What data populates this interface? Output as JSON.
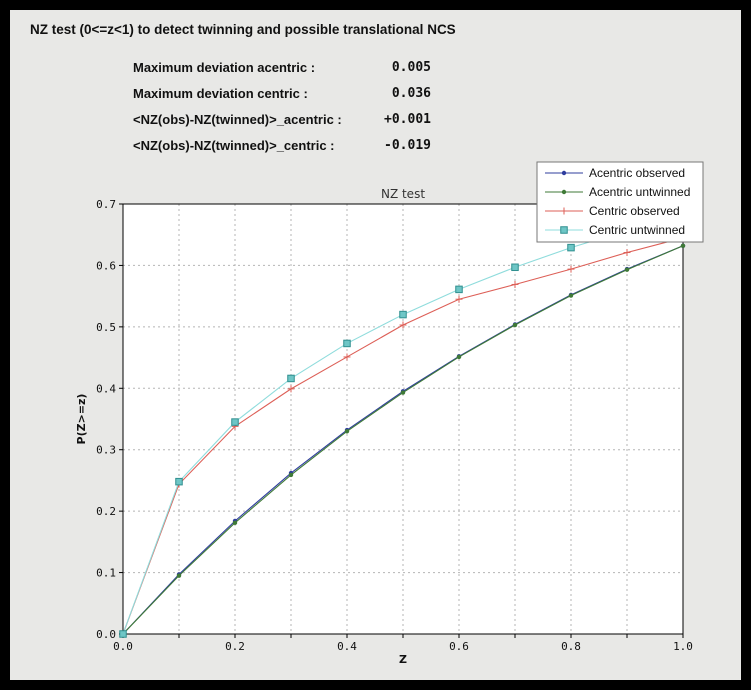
{
  "header": {
    "title": "NZ test (0<=z<1) to detect twinning and possible translational NCS"
  },
  "stats": [
    {
      "label": "Maximum deviation acentric :",
      "value": "0.005"
    },
    {
      "label": "Maximum deviation centric :",
      "value": "0.036"
    },
    {
      "label": "<NZ(obs)-NZ(twinned)>_acentric :",
      "value": "+0.001"
    },
    {
      "label": "<NZ(obs)-NZ(twinned)>_centric :",
      "value": "-0.019"
    }
  ],
  "chart_data": {
    "type": "line",
    "title": "NZ test",
    "xlabel": "Z",
    "ylabel": "P(Z>=z)",
    "xlim": [
      0.0,
      1.0
    ],
    "ylim": [
      0.0,
      0.7
    ],
    "grid": true,
    "legend_position": "top-right",
    "xticks": [
      "0.0",
      "0.2",
      "0.4",
      "0.6",
      "0.8",
      "1.0"
    ],
    "yticks": [
      "0.0",
      "0.1",
      "0.2",
      "0.3",
      "0.4",
      "0.5",
      "0.6",
      "0.7"
    ],
    "grid_x": [
      0.0,
      0.1,
      0.2,
      0.3,
      0.4,
      0.5,
      0.6,
      0.7,
      0.8,
      0.9,
      1.0
    ],
    "grid_y": [
      0.0,
      0.1,
      0.2,
      0.3,
      0.4,
      0.5,
      0.6,
      0.7
    ],
    "x": [
      0.0,
      0.1,
      0.2,
      0.3,
      0.4,
      0.5,
      0.6,
      0.7,
      0.8,
      0.9,
      1.0
    ],
    "series": [
      {
        "name": "Acentric observed",
        "color": "#2f3d9e",
        "marker": "dot",
        "values": [
          0.0,
          0.097,
          0.184,
          0.262,
          0.332,
          0.395,
          0.452,
          0.504,
          0.552,
          0.594,
          0.632
        ]
      },
      {
        "name": "Acentric untwinned",
        "color": "#3f7a37",
        "marker": "dot",
        "values": [
          0.0,
          0.095,
          0.181,
          0.259,
          0.33,
          0.393,
          0.451,
          0.503,
          0.551,
          0.593,
          0.632
        ]
      },
      {
        "name": "Centric observed",
        "color": "#dd5f57",
        "marker": "plus",
        "values": [
          0.0,
          0.244,
          0.338,
          0.399,
          0.451,
          0.503,
          0.545,
          0.569,
          0.594,
          0.621,
          0.645
        ]
      },
      {
        "name": "Centric untwinned",
        "color": "#8fdcdc",
        "marker": "square",
        "marker_fill": "#6ec6c6",
        "marker_edge": "#2f8f8f",
        "values": [
          0.0,
          0.248,
          0.345,
          0.416,
          0.473,
          0.52,
          0.561,
          0.597,
          0.629,
          0.657,
          0.683
        ]
      }
    ]
  }
}
